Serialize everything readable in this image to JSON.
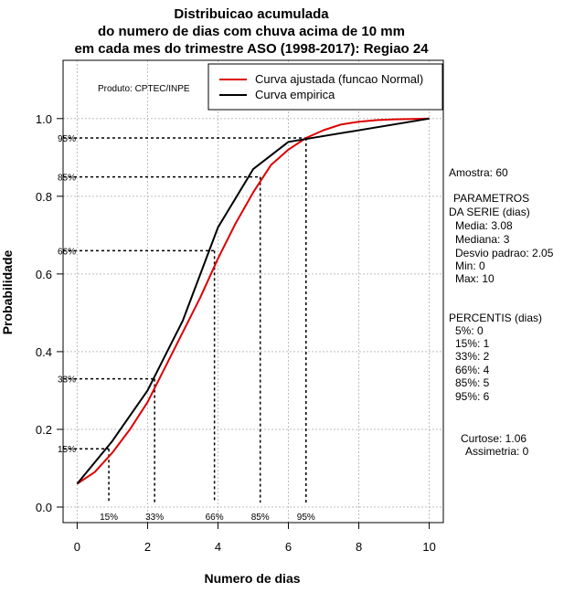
{
  "chart_data": {
    "type": "line",
    "title_lines": [
      "Distribuicao acumulada",
      "do numero de dias com chuva acima de 10 mm",
      "em cada mes do trimestre ASO (1998-2017): Regiao 24"
    ],
    "xlabel": "Numero de dias",
    "ylabel": "Probabilidade",
    "xlim": [
      -0.4,
      10.4
    ],
    "ylim": [
      -0.04,
      1.15
    ],
    "xticks": [
      "0",
      "2",
      "4",
      "6",
      "8",
      "10"
    ],
    "yticks": [
      "0.0",
      "0.2",
      "0.4",
      "0.6",
      "0.8",
      "1.0"
    ],
    "grid": true,
    "producer_note": "Produto: CPTEC/INPE",
    "legend": {
      "placement": "top-right",
      "entries": [
        {
          "label": "Curva ajustada (funcao Normal)",
          "color": "#dd0000"
        },
        {
          "label": "Curva empirica",
          "color": "#000000"
        }
      ]
    },
    "series": [
      {
        "name": "Curva ajustada (funcao Normal)",
        "color": "#dd0000",
        "x": [
          0,
          0.5,
          1,
          1.5,
          2,
          2.5,
          3,
          3.5,
          4,
          4.5,
          5,
          5.5,
          6,
          6.5,
          7,
          7.5,
          8,
          8.5,
          9,
          9.5,
          10
        ],
        "y": [
          0.06,
          0.09,
          0.14,
          0.2,
          0.27,
          0.36,
          0.45,
          0.54,
          0.64,
          0.73,
          0.81,
          0.88,
          0.92,
          0.95,
          0.97,
          0.985,
          0.992,
          0.996,
          0.998,
          0.999,
          1.0
        ]
      },
      {
        "name": "Curva empirica",
        "color": "#000000",
        "x": [
          0,
          1,
          2,
          3,
          4,
          5,
          6,
          10
        ],
        "y": [
          0.06,
          0.17,
          0.3,
          0.48,
          0.72,
          0.87,
          0.94,
          1.0
        ]
      }
    ],
    "percentile_markers": [
      {
        "label": "15%",
        "x": 0.9,
        "y": 0.15
      },
      {
        "label": "33%",
        "x": 2.2,
        "y": 0.33
      },
      {
        "label": "66%",
        "x": 3.9,
        "y": 0.66
      },
      {
        "label": "85%",
        "x": 5.2,
        "y": 0.85
      },
      {
        "label": "95%",
        "x": 6.5,
        "y": 0.95
      }
    ],
    "side_text": {
      "amostra": "Amostra: 60",
      "params_title_1": "PARAMETROS",
      "params_title_2": "DA SERIE (dias)",
      "params": [
        "Media: 3.08",
        "Mediana: 3",
        "Desvio padrao: 2.05",
        "Min: 0",
        "Max: 10"
      ],
      "percentis_title": "PERCENTIS (dias)",
      "percentis": [
        "5%: 0",
        "15%: 1",
        "33%: 2",
        "66%: 4",
        "85%: 5",
        "95%: 6"
      ],
      "curtose": "Curtose: 1.06",
      "assimetria": "Assimetria: 0"
    }
  }
}
